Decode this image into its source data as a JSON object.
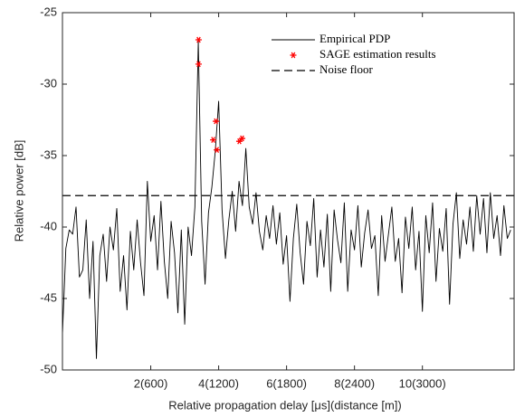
{
  "chart_data": {
    "type": "line",
    "xlabel": "Relative propagation delay [μs](distance [m])",
    "ylabel": "Relative power [dB]",
    "xlim": [
      -0.6,
      12.7
    ],
    "ylim": [
      -50,
      -25
    ],
    "xticks": [
      {
        "value": 2,
        "label": "2(600)"
      },
      {
        "value": 4,
        "label": "4(1200)"
      },
      {
        "value": 6,
        "label": "6(1800)"
      },
      {
        "value": 8,
        "label": "8(2400)"
      },
      {
        "value": 10,
        "label": "10(3000)"
      }
    ],
    "yticks": [
      -50,
      -45,
      -40,
      -35,
      -30,
      -25
    ],
    "legend": "top-right",
    "series": [
      {
        "name": "Empirical PDP",
        "color": "#000000",
        "style": "solid",
        "x": [
          -0.6,
          -0.5,
          -0.4,
          -0.3,
          -0.2,
          -0.1,
          0,
          0.1,
          0.2,
          0.3,
          0.4,
          0.5,
          0.6,
          0.7,
          0.8,
          0.9,
          1.0,
          1.1,
          1.2,
          1.3,
          1.4,
          1.5,
          1.6,
          1.7,
          1.8,
          1.9,
          2.0,
          2.1,
          2.2,
          2.3,
          2.4,
          2.5,
          2.6,
          2.7,
          2.8,
          2.9,
          3.0,
          3.1,
          3.2,
          3.3,
          3.4,
          3.5,
          3.6,
          3.7,
          3.8,
          3.9,
          4.0,
          4.1,
          4.2,
          4.3,
          4.4,
          4.5,
          4.6,
          4.7,
          4.8,
          4.9,
          5.0,
          5.1,
          5.2,
          5.3,
          5.4,
          5.5,
          5.6,
          5.7,
          5.8,
          5.9,
          6.0,
          6.1,
          6.2,
          6.3,
          6.4,
          6.5,
          6.6,
          6.7,
          6.8,
          6.9,
          7.0,
          7.1,
          7.2,
          7.3,
          7.4,
          7.5,
          7.6,
          7.7,
          7.8,
          7.9,
          8.0,
          8.1,
          8.2,
          8.3,
          8.4,
          8.5,
          8.6,
          8.7,
          8.8,
          8.9,
          9.0,
          9.1,
          9.2,
          9.3,
          9.4,
          9.5,
          9.6,
          9.7,
          9.8,
          9.9,
          10.0,
          10.1,
          10.2,
          10.3,
          10.4,
          10.5,
          10.6,
          10.7,
          10.8,
          10.9,
          11.0,
          11.1,
          11.2,
          11.3,
          11.4,
          11.5,
          11.6,
          11.7,
          11.8,
          11.9,
          12.0,
          12.1,
          12.2,
          12.3,
          12.4,
          12.5,
          12.6
        ],
        "values": [
          -47.5,
          -41.5,
          -40.2,
          -40.5,
          -38.6,
          -43.5,
          -43,
          -39.5,
          -45,
          -41,
          -49.2,
          -42,
          -40.5,
          -43.8,
          -40,
          -41.6,
          -38.7,
          -44.5,
          -42,
          -45.8,
          -40.3,
          -43,
          -39.5,
          -42.5,
          -44.8,
          -36.8,
          -41,
          -39.2,
          -43,
          -38.2,
          -42.4,
          -45,
          -39.6,
          -41.8,
          -46,
          -40.2,
          -46.8,
          -40,
          -42,
          -38.6,
          -27,
          -39.6,
          -44,
          -39,
          -37.2,
          -34.7,
          -31.2,
          -38.8,
          -42.2,
          -39.5,
          -37.5,
          -40.3,
          -36.8,
          -38.5,
          -34.5,
          -38.6,
          -39.8,
          -37.6,
          -40.3,
          -41.6,
          -39.2,
          -40.8,
          -38.5,
          -41.2,
          -39,
          -42.6,
          -40.6,
          -45.2,
          -40.8,
          -38.4,
          -41.8,
          -44,
          -39.6,
          -41.3,
          -38,
          -43.5,
          -40.2,
          -42.8,
          -39.1,
          -44.5,
          -38.8,
          -40.9,
          -42.5,
          -38.3,
          -44.5,
          -40.2,
          -41.6,
          -38.5,
          -42.8,
          -40.4,
          -38.8,
          -41.5,
          -40.6,
          -44.8,
          -39.2,
          -42.4,
          -40.5,
          -38.6,
          -42.4,
          -40.8,
          -44.6,
          -39.3,
          -41.5,
          -38.6,
          -43,
          -40.3,
          -45.9,
          -39.2,
          -41.8,
          -38.3,
          -43.8,
          -40.1,
          -41.7,
          -38.7,
          -45.4,
          -39.8,
          -37.6,
          -42.2,
          -39.5,
          -41.2,
          -38.6,
          -41.7,
          -37.8,
          -40.5,
          -38,
          -41.8,
          -37.6,
          -40.8,
          -39.2,
          -42,
          -38.5,
          -40.8,
          -40.2
        ]
      },
      {
        "name": "SAGE estimation results",
        "color": "#ff0000",
        "style": "marker",
        "x": [
          3.41,
          3.41,
          3.92,
          3.84,
          3.95,
          4.61,
          4.69
        ],
        "values": [
          -26.9,
          -28.6,
          -32.6,
          -33.9,
          -34.6,
          -34.0,
          -33.8
        ]
      },
      {
        "name": "Noise floor",
        "color": "#000000",
        "style": "dashed",
        "x": [
          -0.6,
          12.7
        ],
        "values": [
          -37.8,
          -37.8
        ]
      }
    ]
  }
}
